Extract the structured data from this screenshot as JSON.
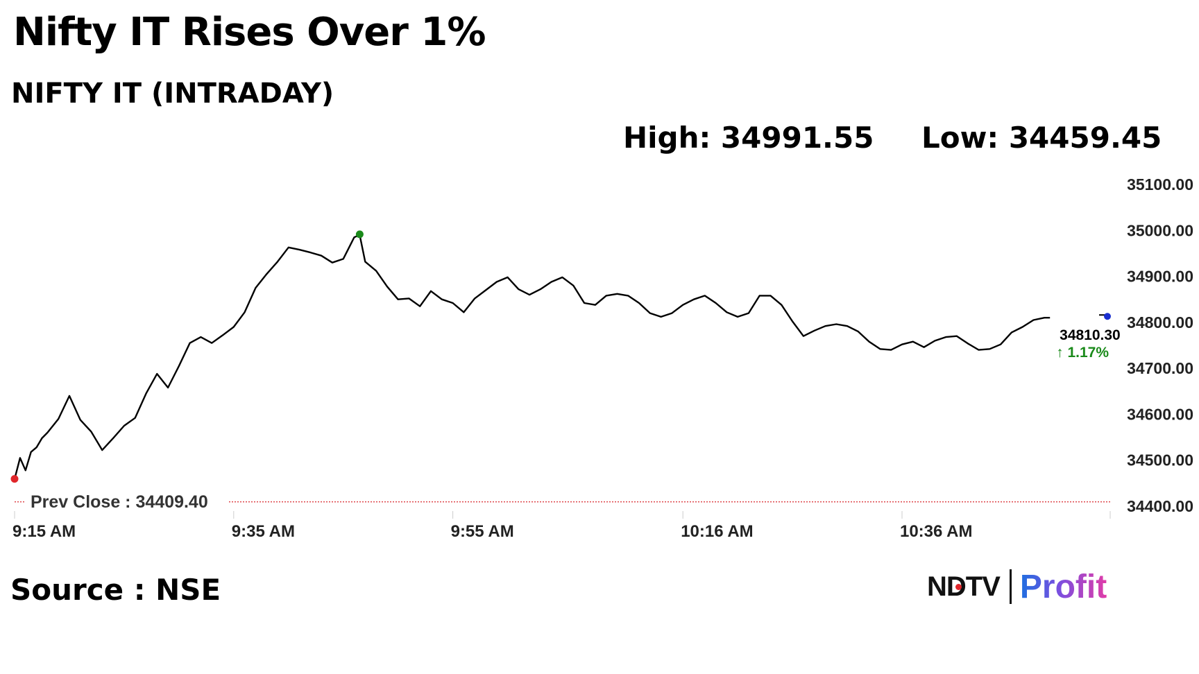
{
  "header": {
    "title": "Nifty IT Rises Over 1%",
    "subtitle": "NIFTY IT (INTRADAY)",
    "high_text": "High: 34991.55",
    "low_text": "Low: 34459.45"
  },
  "footer": {
    "source_text": "Source : NSE",
    "logo_left": "NDTV",
    "logo_right": "Profit"
  },
  "colors": {
    "line": "#000000",
    "prev_close_line": "#d9262b",
    "high_marker": "#1a8a1a",
    "low_marker": "#e0262b",
    "last_marker": "#1a2fd0",
    "change_positive": "#1a8a1a"
  },
  "chart_data": {
    "type": "line",
    "title": "NIFTY IT (INTRADAY)",
    "ylim": [
      34400,
      35100
    ],
    "yticks": [
      {
        "value": 35100,
        "label": "35100.00"
      },
      {
        "value": 35000,
        "label": "35000.00"
      },
      {
        "value": 34900,
        "label": "34900.00"
      },
      {
        "value": 34800,
        "label": "34800.00"
      },
      {
        "value": 34700,
        "label": "34700.00"
      },
      {
        "value": 34600,
        "label": "34600.00"
      },
      {
        "value": 34500,
        "label": "34500.00"
      },
      {
        "value": 34400,
        "label": "34400.00"
      }
    ],
    "xlim": [
      0,
      100
    ],
    "xticks": [
      {
        "value": 0,
        "label": "9:15 AM"
      },
      {
        "value": 20,
        "label": "9:35 AM"
      },
      {
        "value": 40,
        "label": "9:55 AM"
      },
      {
        "value": 61,
        "label": "10:16 AM"
      },
      {
        "value": 81,
        "label": "10:36 AM"
      }
    ],
    "prev_close": {
      "value": 34409.4,
      "label": "Prev Close : 34409.40"
    },
    "last": {
      "value_label": "34810.30",
      "change_label": "↑ 1.17%",
      "change_percent": 1.17
    },
    "high_point": {
      "x": 31.5,
      "y": 34991.55
    },
    "low_point": {
      "x": 0,
      "y": 34459.45
    },
    "series": [
      {
        "x": [
          0,
          0.5,
          1,
          1.5,
          2,
          2.5,
          3,
          4,
          5,
          6,
          7,
          8,
          9,
          10,
          11,
          12,
          13,
          14,
          15,
          16,
          17,
          18,
          19,
          20,
          21,
          22,
          23,
          24,
          25,
          26,
          27,
          28,
          29,
          30,
          31,
          31.5,
          32,
          33,
          34,
          35,
          36,
          37,
          38,
          39,
          40,
          41,
          42,
          43,
          44,
          45,
          46,
          47,
          48,
          49,
          50,
          51,
          52,
          53,
          54,
          55,
          56,
          57,
          58,
          59,
          60,
          61,
          62,
          63,
          64,
          65,
          66,
          67,
          68,
          69,
          70,
          71,
          72,
          73,
          74,
          75,
          76,
          77,
          78,
          79,
          80,
          81,
          82,
          83,
          84,
          85,
          86,
          87,
          88,
          89,
          90,
          91,
          92,
          93,
          94,
          94.5
        ],
        "y": [
          34459,
          34505,
          34478,
          34518,
          34528,
          34548,
          34560,
          34590,
          34640,
          34588,
          34562,
          34522,
          34548,
          34575,
          34592,
          34645,
          34688,
          34658,
          34705,
          34755,
          34768,
          34755,
          34772,
          34790,
          34822,
          34875,
          34905,
          34932,
          34963,
          34958,
          34952,
          34945,
          34930,
          34938,
          34985,
          34990,
          34932,
          34912,
          34878,
          34850,
          34852,
          34835,
          34868,
          34850,
          34842,
          34822,
          34852,
          34870,
          34888,
          34898,
          34872,
          34860,
          34872,
          34888,
          34898,
          34880,
          34842,
          34838,
          34858,
          34862,
          34858,
          34842,
          34820,
          34812,
          34820,
          34838,
          34850,
          34858,
          34842,
          34822,
          34812,
          34820,
          34858,
          34858,
          34838,
          34802,
          34770,
          34782,
          34792,
          34796,
          34792,
          34780,
          34758,
          34742,
          34740,
          34752,
          34758,
          34746,
          34760,
          34768,
          34770,
          34754,
          34740,
          34742,
          34752,
          34778,
          34790,
          34805,
          34810,
          34810
        ]
      }
    ]
  }
}
